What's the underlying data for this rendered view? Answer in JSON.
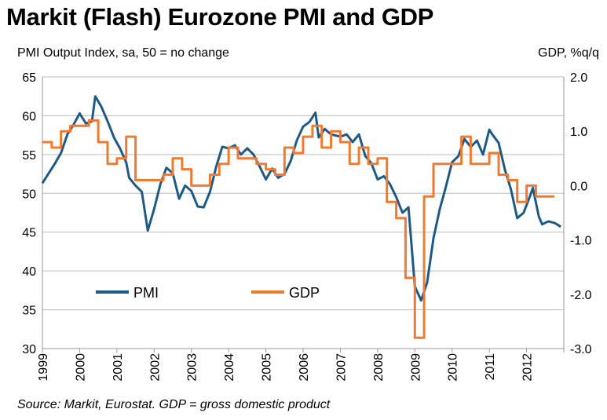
{
  "title": "Markit (Flash) Eurozone PMI and GDP",
  "left_axis_label": "PMI Output Index, sa, 50 = no change",
  "right_axis_label": "GDP, %q/q",
  "source": "Source: Markit, Eurostat. GDP = gross domestic product",
  "colors": {
    "pmi": "#1f5a86",
    "gdp": "#ef7a30",
    "grid": "#bdbdbd"
  },
  "chart_data": {
    "type": "line",
    "x_ticks": [
      "1999",
      "2000",
      "2001",
      "2002",
      "2003",
      "2004",
      "2005",
      "2006",
      "2007",
      "2008",
      "2009",
      "2010",
      "2011",
      "2012"
    ],
    "y_left": {
      "ticks": [
        "65",
        "60",
        "55",
        "50",
        "45",
        "40",
        "35",
        "30"
      ],
      "lim": [
        30,
        65
      ]
    },
    "y_right": {
      "ticks": [
        "2.0",
        "1.0",
        "0.0",
        "-1.0",
        "-2.0",
        "-3.0"
      ],
      "lim": [
        -3.0,
        2.0
      ]
    },
    "grid": true,
    "legend": "inside-lower-left",
    "series": [
      {
        "name": "PMI",
        "axis": "left",
        "points": [
          [
            1999.0,
            51.3
          ],
          [
            1999.17,
            52.6
          ],
          [
            1999.33,
            53.8
          ],
          [
            1999.5,
            55.2
          ],
          [
            1999.67,
            57.6
          ],
          [
            1999.83,
            58.8
          ],
          [
            2000.0,
            60.3
          ],
          [
            2000.17,
            59.0
          ],
          [
            2000.33,
            59.3
          ],
          [
            2000.42,
            62.5
          ],
          [
            2000.58,
            61.2
          ],
          [
            2000.75,
            59.3
          ],
          [
            2000.92,
            57.2
          ],
          [
            2001.08,
            55.8
          ],
          [
            2001.25,
            54.0
          ],
          [
            2001.33,
            52.0
          ],
          [
            2001.5,
            51.0
          ],
          [
            2001.67,
            50.2
          ],
          [
            2001.83,
            45.2
          ],
          [
            2002.0,
            48.0
          ],
          [
            2002.17,
            51.2
          ],
          [
            2002.33,
            53.3
          ],
          [
            2002.5,
            52.6
          ],
          [
            2002.67,
            49.3
          ],
          [
            2002.83,
            51.0
          ],
          [
            2003.0,
            50.3
          ],
          [
            2003.17,
            48.3
          ],
          [
            2003.33,
            48.2
          ],
          [
            2003.5,
            50.2
          ],
          [
            2003.67,
            53.5
          ],
          [
            2003.83,
            56.0
          ],
          [
            2004.0,
            55.8
          ],
          [
            2004.17,
            56.2
          ],
          [
            2004.33,
            55.0
          ],
          [
            2004.5,
            55.8
          ],
          [
            2004.67,
            55.0
          ],
          [
            2004.83,
            53.5
          ],
          [
            2005.0,
            51.8
          ],
          [
            2005.17,
            53.2
          ],
          [
            2005.33,
            52.0
          ],
          [
            2005.5,
            52.5
          ],
          [
            2005.67,
            54.2
          ],
          [
            2005.83,
            56.8
          ],
          [
            2006.0,
            58.6
          ],
          [
            2006.17,
            59.2
          ],
          [
            2006.33,
            60.4
          ],
          [
            2006.42,
            57.2
          ],
          [
            2006.58,
            58.3
          ],
          [
            2006.75,
            57.6
          ],
          [
            2007.0,
            57.3
          ],
          [
            2007.17,
            57.6
          ],
          [
            2007.33,
            56.6
          ],
          [
            2007.5,
            57.6
          ],
          [
            2007.67,
            54.8
          ],
          [
            2007.83,
            53.9
          ],
          [
            2008.0,
            51.8
          ],
          [
            2008.17,
            52.2
          ],
          [
            2008.33,
            51.2
          ],
          [
            2008.5,
            49.5
          ],
          [
            2008.67,
            47.5
          ],
          [
            2008.83,
            48.2
          ],
          [
            2009.0,
            38.0
          ],
          [
            2009.17,
            36.2
          ],
          [
            2009.33,
            38.5
          ],
          [
            2009.5,
            44.2
          ],
          [
            2009.67,
            48.0
          ],
          [
            2009.83,
            50.8
          ],
          [
            2010.0,
            54.0
          ],
          [
            2010.17,
            54.8
          ],
          [
            2010.33,
            57.0
          ],
          [
            2010.5,
            56.0
          ],
          [
            2010.67,
            56.8
          ],
          [
            2010.83,
            55.0
          ],
          [
            2011.0,
            58.2
          ],
          [
            2011.08,
            57.6
          ],
          [
            2011.25,
            56.5
          ],
          [
            2011.42,
            53.0
          ],
          [
            2011.58,
            50.5
          ],
          [
            2011.75,
            46.8
          ],
          [
            2011.92,
            47.5
          ],
          [
            2012.08,
            49.5
          ],
          [
            2012.17,
            50.7
          ],
          [
            2012.33,
            47.0
          ],
          [
            2012.42,
            46.0
          ],
          [
            2012.58,
            46.4
          ],
          [
            2012.75,
            46.2
          ],
          [
            2012.92,
            45.7
          ]
        ]
      },
      {
        "name": "GDP",
        "axis": "right",
        "step": 0.25,
        "points": [
          [
            1999.0,
            0.8
          ],
          [
            1999.25,
            0.7
          ],
          [
            1999.5,
            1.0
          ],
          [
            1999.75,
            1.1
          ],
          [
            2000.0,
            1.1
          ],
          [
            2000.25,
            1.2
          ],
          [
            2000.5,
            0.8
          ],
          [
            2000.75,
            0.4
          ],
          [
            2001.0,
            0.5
          ],
          [
            2001.25,
            0.9
          ],
          [
            2001.5,
            0.1
          ],
          [
            2001.75,
            0.1
          ],
          [
            2002.0,
            0.1
          ],
          [
            2002.25,
            0.2
          ],
          [
            2002.5,
            0.5
          ],
          [
            2002.75,
            0.3
          ],
          [
            2003.0,
            0.0
          ],
          [
            2003.25,
            0.0
          ],
          [
            2003.5,
            0.2
          ],
          [
            2003.75,
            0.4
          ],
          [
            2004.0,
            0.7
          ],
          [
            2004.25,
            0.5
          ],
          [
            2004.5,
            0.5
          ],
          [
            2004.75,
            0.4
          ],
          [
            2005.0,
            0.3
          ],
          [
            2005.25,
            0.2
          ],
          [
            2005.5,
            0.7
          ],
          [
            2005.75,
            0.6
          ],
          [
            2006.0,
            0.9
          ],
          [
            2006.25,
            1.1
          ],
          [
            2006.5,
            0.7
          ],
          [
            2006.75,
            1.0
          ],
          [
            2007.0,
            0.8
          ],
          [
            2007.25,
            0.4
          ],
          [
            2007.5,
            0.7
          ],
          [
            2007.75,
            0.4
          ],
          [
            2008.0,
            0.5
          ],
          [
            2008.25,
            -0.3
          ],
          [
            2008.5,
            -0.6
          ],
          [
            2008.75,
            -1.7
          ],
          [
            2009.0,
            -2.8
          ],
          [
            2009.25,
            -0.2
          ],
          [
            2009.5,
            0.4
          ],
          [
            2009.75,
            0.4
          ],
          [
            2010.0,
            0.4
          ],
          [
            2010.25,
            0.9
          ],
          [
            2010.5,
            0.4
          ],
          [
            2010.75,
            0.4
          ],
          [
            2011.0,
            0.6
          ],
          [
            2011.25,
            0.2
          ],
          [
            2011.5,
            0.1
          ],
          [
            2011.75,
            -0.3
          ],
          [
            2012.0,
            0.0
          ],
          [
            2012.25,
            -0.2
          ],
          [
            2012.5,
            -0.2
          ]
        ]
      }
    ]
  }
}
